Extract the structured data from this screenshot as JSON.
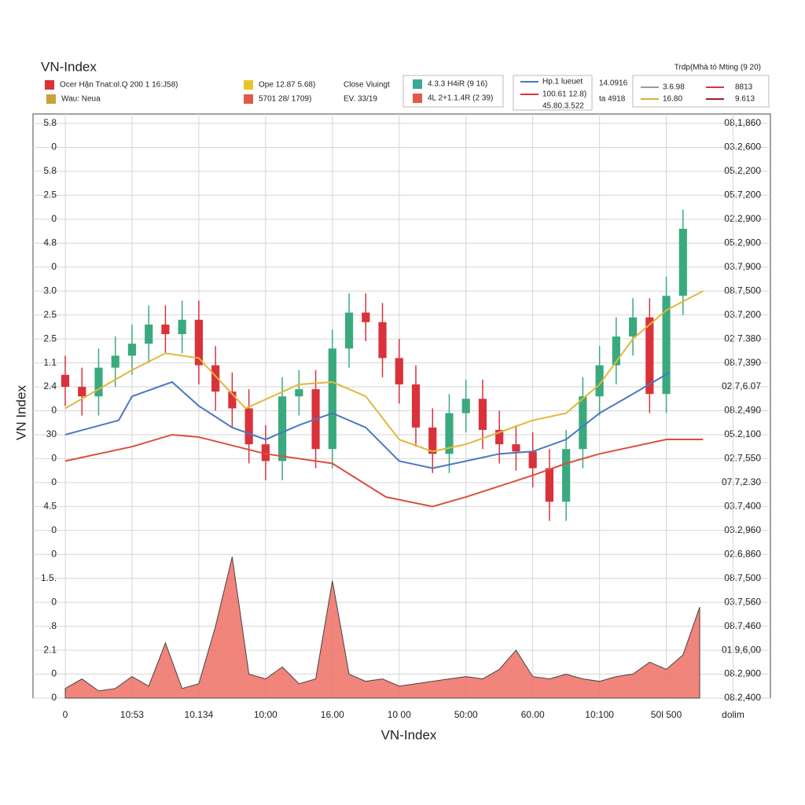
{
  "chart_data": {
    "type": "candlestick",
    "title": "VN-Index",
    "x_label": "VN-Index",
    "y_label": "VN Index",
    "legend": [
      {
        "label": "Ocer Hận Tnat:ol.Q 200 1 16:J58)",
        "color": "#d9323a"
      },
      {
        "label": "Wau: Neua",
        "color": "#c9a23a"
      },
      {
        "label": "Ope 12.87 5.68)",
        "color": "#e8c42c"
      },
      {
        "label": "5701 28/ 1709)",
        "color": "#e05a4a"
      },
      {
        "label": "Close Viuingt",
        "color": "#222222"
      },
      {
        "label": "EV. 33/19",
        "color": "#222222"
      },
      {
        "label": "4.3.3 H4iR (9 16)",
        "color": "#3aaa8e"
      },
      {
        "label": "4L 2+1.1.4R (2 39)",
        "color": "#e05a4a"
      },
      {
        "label": "Hp.1 lueuet",
        "color": "#4a78c0"
      },
      {
        "label": "100.61 12.8)",
        "color": "#d9323a"
      },
      {
        "label": "45.80.3.522",
        "color": "#d9323a"
      },
      {
        "label": "14.0916",
        "color": "#222222"
      },
      {
        "label": "ta 4918",
        "color": "#222222"
      },
      {
        "label": "Trdp(Mhà tó Mting (9 20)",
        "color": "#222222"
      },
      {
        "label": "3.6.98",
        "color": "#999999"
      },
      {
        "label": "16.80",
        "color": "#d9b23a"
      },
      {
        "label": "8813",
        "color": "#d9323a"
      },
      {
        "label": "9.613",
        "color": "#a02020"
      }
    ],
    "xlim": [
      0,
      10.5
    ],
    "xticks": [
      {
        "value": 0,
        "label": "0"
      },
      {
        "value": 1,
        "label": "10:53"
      },
      {
        "value": 2,
        "label": "10.134"
      },
      {
        "value": 3,
        "label": "10:00"
      },
      {
        "value": 4,
        "label": "16.00"
      },
      {
        "value": 5,
        "label": "10 00"
      },
      {
        "value": 6,
        "label": "50:00"
      },
      {
        "value": 7,
        "label": "60.00"
      },
      {
        "value": 8,
        "label": "10:100"
      },
      {
        "value": 9,
        "label": "50l 500"
      },
      {
        "value": 10,
        "label": "dolim"
      }
    ],
    "ylim": [
      0,
      24
    ],
    "yticks": [
      {
        "value": 24,
        "label": "5.8"
      },
      {
        "value": 23,
        "label": "0"
      },
      {
        "value": 22,
        "label": "5.8"
      },
      {
        "value": 21,
        "label": "2.5"
      },
      {
        "value": 20,
        "label": "0"
      },
      {
        "value": 19,
        "label": "4.8"
      },
      {
        "value": 18,
        "label": "0"
      },
      {
        "value": 17,
        "label": "3.0"
      },
      {
        "value": 16,
        "label": "2.5"
      },
      {
        "value": 15,
        "label": "2.5"
      },
      {
        "value": 14,
        "label": "1.1"
      },
      {
        "value": 13,
        "label": "2.4"
      },
      {
        "value": 12,
        "label": "0"
      },
      {
        "value": 11,
        "label": "30"
      },
      {
        "value": 10,
        "label": "0"
      },
      {
        "value": 9,
        "label": "0"
      },
      {
        "value": 8,
        "label": "4.5"
      },
      {
        "value": 7,
        "label": "0"
      },
      {
        "value": 6,
        "label": "0"
      },
      {
        "value": 5,
        "label": "1.5."
      },
      {
        "value": 4,
        "label": "0"
      },
      {
        "value": 3,
        "label": ".8"
      },
      {
        "value": 2,
        "label": "2.1"
      },
      {
        "value": 1,
        "label": "0"
      },
      {
        "value": 0,
        "label": "0"
      }
    ],
    "y2lim": [
      0,
      24
    ],
    "y2ticks": [
      {
        "value": 24,
        "label": "08,1,860"
      },
      {
        "value": 23,
        "label": "03.2,600"
      },
      {
        "value": 22,
        "label": "05.2,200"
      },
      {
        "value": 21,
        "label": "05.7,200"
      },
      {
        "value": 20,
        "label": "02.2,900"
      },
      {
        "value": 19,
        "label": "05.2,900"
      },
      {
        "value": 18,
        "label": "03.7,900"
      },
      {
        "value": 17,
        "label": "08.7,500"
      },
      {
        "value": 16,
        "label": "03.7,200"
      },
      {
        "value": 15,
        "label": "02 7.380"
      },
      {
        "value": 14,
        "label": "08.7,390"
      },
      {
        "value": 13,
        "label": "02.7,6.07"
      },
      {
        "value": 12,
        "label": "08.2,490"
      },
      {
        "value": 11,
        "label": "05.2,100"
      },
      {
        "value": 10,
        "label": "02.7,550"
      },
      {
        "value": 9,
        "label": "07.7,2.30"
      },
      {
        "value": 8,
        "label": "03.7,400"
      },
      {
        "value": 7,
        "label": "03.2,960"
      },
      {
        "value": 6,
        "label": "02.6,860"
      },
      {
        "value": 5,
        "label": "08.7,500"
      },
      {
        "value": 4,
        "label": "03.7,560"
      },
      {
        "value": 3,
        "label": "08.7,460"
      },
      {
        "value": 2,
        "label": "01.9,6,00"
      },
      {
        "value": 1,
        "label": "08.2,900"
      },
      {
        "value": 0,
        "label": "08.2,400"
      }
    ],
    "grid": true,
    "up_color": "#3aaa7e",
    "down_color": "#d9323a",
    "x": [
      0,
      0.25,
      0.5,
      0.75,
      1,
      1.25,
      1.5,
      1.75,
      2,
      2.25,
      2.5,
      2.75,
      3,
      3.25,
      3.5,
      3.75,
      4,
      4.25,
      4.5,
      4.75,
      5,
      5.25,
      5.5,
      5.75,
      6,
      6.25,
      6.5,
      6.75,
      7,
      7.25,
      7.5,
      7.75,
      8,
      8.25,
      8.5,
      8.75,
      9,
      9.25
    ],
    "open": [
      13.5,
      13.0,
      12.6,
      13.8,
      14.3,
      14.8,
      15.6,
      15.2,
      15.8,
      13.9,
      12.8,
      12.1,
      10.6,
      9.9,
      12.6,
      12.9,
      10.4,
      14.6,
      16.1,
      15.7,
      14.2,
      13.1,
      11.3,
      10.2,
      11.9,
      12.5,
      11.2,
      10.6,
      10.3,
      9.6,
      8.2,
      10.4,
      12.6,
      13.9,
      15.1,
      15.9,
      12.7,
      16.8
    ],
    "high": [
      14.3,
      13.8,
      14.6,
      15.1,
      15.6,
      16.4,
      16.4,
      16.6,
      16.6,
      14.7,
      13.6,
      12.9,
      11.4,
      13.4,
      13.7,
      13.7,
      15.4,
      16.9,
      16.9,
      16.5,
      15.0,
      13.9,
      12.1,
      12.7,
      13.3,
      13.3,
      12.0,
      11.4,
      11.1,
      10.4,
      11.2,
      13.4,
      14.7,
      15.9,
      16.7,
      16.7,
      17.6,
      20.4
    ],
    "low": [
      12.2,
      11.8,
      11.8,
      13.0,
      13.5,
      14.0,
      14.4,
      14.4,
      13.1,
      12.0,
      11.3,
      9.8,
      9.1,
      9.1,
      11.8,
      9.6,
      9.6,
      13.8,
      14.9,
      13.4,
      12.3,
      10.5,
      9.4,
      9.4,
      11.1,
      10.4,
      9.8,
      9.5,
      8.8,
      7.4,
      7.4,
      9.6,
      11.8,
      13.1,
      14.3,
      11.9,
      11.9,
      16.0
    ],
    "close": [
      13.0,
      12.6,
      13.8,
      14.3,
      14.8,
      15.6,
      15.2,
      15.8,
      13.9,
      12.8,
      12.1,
      10.6,
      9.9,
      12.6,
      12.9,
      10.4,
      14.6,
      16.1,
      15.7,
      14.2,
      13.1,
      11.3,
      10.2,
      11.9,
      12.5,
      11.2,
      10.6,
      10.3,
      9.6,
      8.2,
      10.4,
      12.6,
      13.9,
      15.1,
      15.9,
      12.7,
      16.8,
      19.6
    ],
    "lines": [
      {
        "color": "#e0b83c",
        "x": [
          0,
          1,
          1.5,
          2,
          2.7,
          3.5,
          4,
          4.5,
          5,
          5.5,
          6,
          6.5,
          7,
          7.5,
          8,
          8.5,
          9,
          9.55
        ],
        "values": [
          12.1,
          13.7,
          14.4,
          14.2,
          12.1,
          13.1,
          13.2,
          12.6,
          10.8,
          10.3,
          10.6,
          11.1,
          11.6,
          11.9,
          13.1,
          15.0,
          16.2,
          17.0
        ]
      },
      {
        "color": "#4a78c0",
        "x": [
          0,
          0.8,
          1,
          1.6,
          2,
          2.5,
          3,
          3.5,
          4,
          4.5,
          5,
          5.5,
          6,
          6.5,
          7,
          7.5,
          8,
          8.5,
          9.05
        ],
        "values": [
          11.0,
          11.6,
          12.6,
          13.2,
          12.2,
          11.3,
          10.8,
          11.4,
          11.9,
          11.3,
          9.9,
          9.6,
          9.9,
          10.2,
          10.3,
          10.8,
          11.9,
          12.7,
          13.6
        ]
      },
      {
        "color": "#d9503f",
        "x": [
          0,
          1,
          1.6,
          2,
          3,
          4,
          4.8,
          5.5,
          6,
          7,
          7.5,
          8,
          9,
          9.55
        ],
        "values": [
          9.9,
          10.5,
          11.0,
          10.9,
          10.2,
          9.8,
          8.4,
          8.0,
          8.4,
          9.3,
          9.8,
          10.2,
          10.8,
          10.8
        ]
      }
    ],
    "volume": {
      "color": "#ef6f64",
      "x": [
        0,
        0.25,
        0.5,
        0.75,
        1,
        1.25,
        1.5,
        1.75,
        2,
        2.25,
        2.5,
        2.75,
        3,
        3.25,
        3.5,
        3.75,
        4,
        4.25,
        4.5,
        4.75,
        5,
        5.25,
        5.5,
        5.75,
        6,
        6.25,
        6.5,
        6.75,
        7,
        7.25,
        7.5,
        7.75,
        8,
        8.25,
        8.5,
        8.75,
        9,
        9.25,
        9.5
      ],
      "values": [
        0.4,
        0.8,
        0.3,
        0.4,
        0.9,
        0.5,
        2.3,
        0.4,
        0.6,
        3.0,
        5.9,
        1.0,
        0.8,
        1.3,
        0.6,
        0.8,
        4.9,
        1.0,
        0.7,
        0.8,
        0.5,
        0.6,
        0.7,
        0.8,
        0.9,
        0.8,
        1.2,
        2.0,
        0.9,
        0.8,
        1.0,
        0.8,
        0.7,
        0.9,
        1.0,
        1.5,
        1.2,
        1.8,
        3.8
      ]
    }
  }
}
